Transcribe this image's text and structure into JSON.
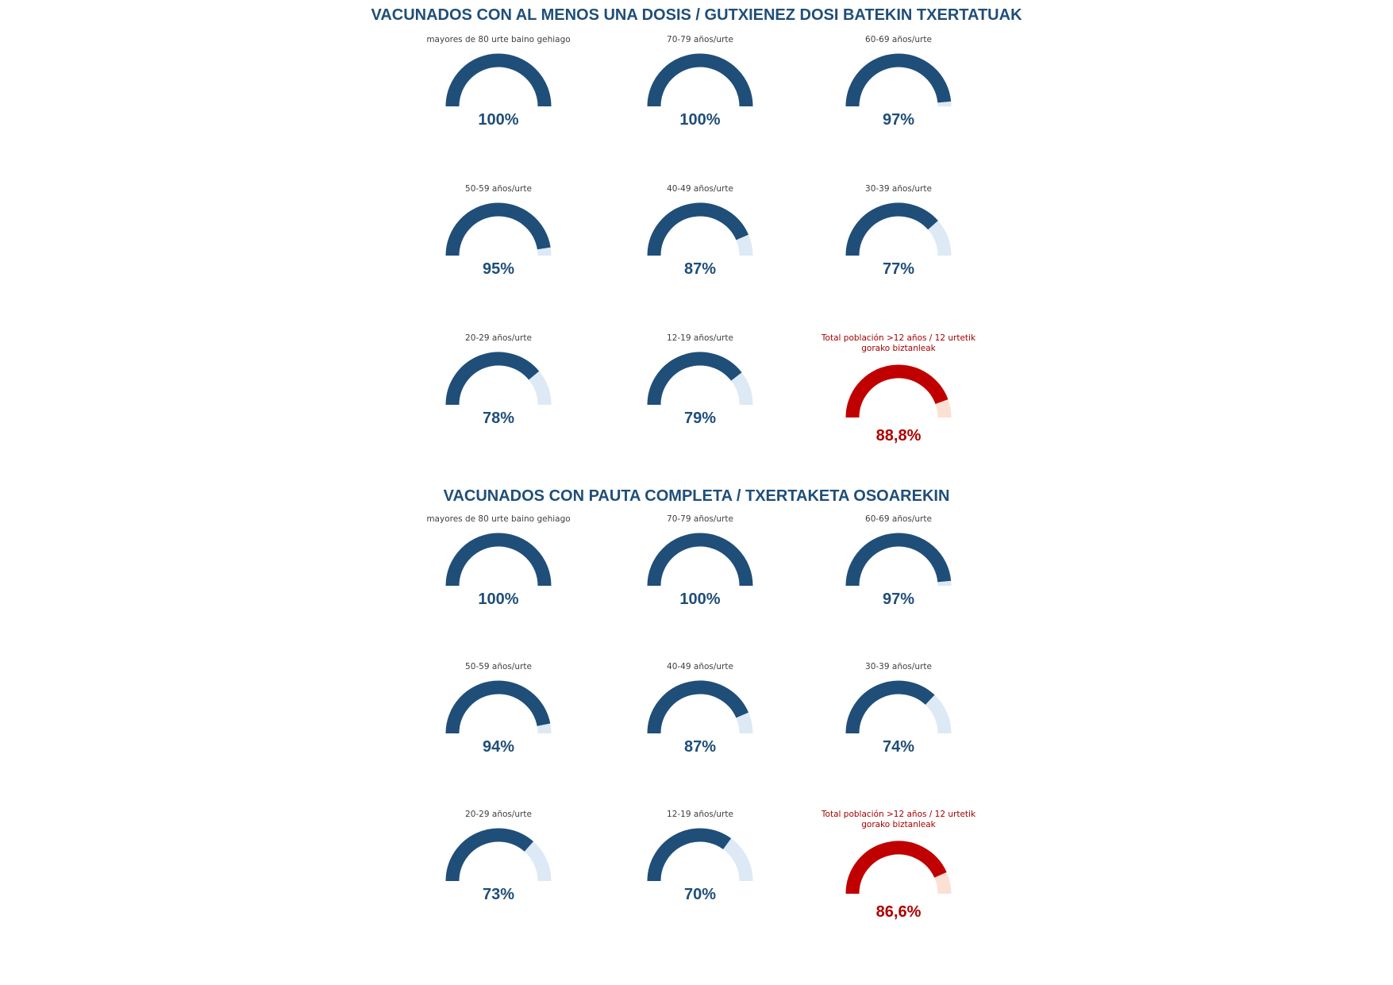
{
  "colors": {
    "filled": "#1f4e79",
    "empty": "#dde9f5",
    "total_filled": "#c00000",
    "total_empty": "#fbe0d4",
    "title": "#1f4e79"
  },
  "sections": [
    {
      "title": "VACUNADOS CON AL MENOS UNA DOSIS  / GUTXIENEZ DOSI BATEKIN TXERTATUAK"
    },
    {
      "title": "VACUNADOS CON PAUTA COMPLETA  / TXERTAKETA OSOAREKIN"
    }
  ],
  "chart_data": [
    {
      "type": "gauge",
      "title": "VACUNADOS CON AL MENOS UNA DOSIS  / GUTXIENEZ DOSI BATEKIN TXERTATUAK",
      "gauges": [
        {
          "label": "mayores de 80 urte baino gehiago",
          "value": 100,
          "display": "100%"
        },
        {
          "label": "70-79 años/urte",
          "value": 100,
          "display": "100%"
        },
        {
          "label": "60-69 años/urte",
          "value": 97,
          "display": "97%"
        },
        {
          "label": "50-59 años/urte",
          "value": 95,
          "display": "95%"
        },
        {
          "label": "40-49 años/urte",
          "value": 87,
          "display": "87%"
        },
        {
          "label": "30-39 años/urte",
          "value": 77,
          "display": "77%"
        },
        {
          "label": "20-29 años/urte",
          "value": 78,
          "display": "78%"
        },
        {
          "label": "12-19 años/urte",
          "value": 79,
          "display": "79%"
        },
        {
          "label": "Total población >12 años / 12 urtetik gorako biztanleak",
          "value": 88.8,
          "display": "88,8%",
          "total": true
        }
      ]
    },
    {
      "type": "gauge",
      "title": "VACUNADOS CON PAUTA COMPLETA  / TXERTAKETA OSOAREKIN",
      "gauges": [
        {
          "label": "mayores de 80 urte baino gehiago",
          "value": 100,
          "display": "100%"
        },
        {
          "label": "70-79 años/urte",
          "value": 100,
          "display": "100%"
        },
        {
          "label": "60-69 años/urte",
          "value": 97,
          "display": "97%"
        },
        {
          "label": "50-59 años/urte",
          "value": 94,
          "display": "94%"
        },
        {
          "label": "40-49 años/urte",
          "value": 87,
          "display": "87%"
        },
        {
          "label": "30-39 años/urte",
          "value": 74,
          "display": "74%"
        },
        {
          "label": "20-29 años/urte",
          "value": 73,
          "display": "73%"
        },
        {
          "label": "12-19 años/urte",
          "value": 70,
          "display": "70%"
        },
        {
          "label": "Total población >12 años / 12 urtetik gorako biztanleak",
          "value": 86.6,
          "display": "86,6%",
          "total": true
        }
      ]
    }
  ]
}
